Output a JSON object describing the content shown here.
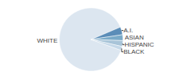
{
  "chart_data": {
    "type": "pie",
    "categories": [
      "WHITE",
      "A.I.",
      "ASIAN",
      "HISPANIC",
      "BLACK"
    ],
    "values": [
      88,
      4,
      3,
      3,
      2
    ],
    "colors": [
      "#dce6f0",
      "#5b8db8",
      "#7aaac8",
      "#a8c4d8",
      "#c5d8e8"
    ]
  }
}
